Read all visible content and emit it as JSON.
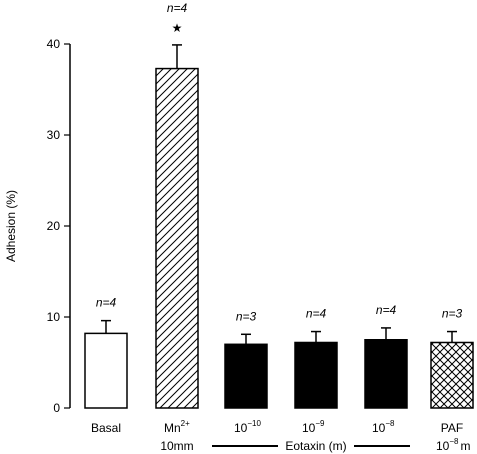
{
  "chart_data": {
    "type": "bar",
    "ylabel": "Adhesion (%)",
    "ylim": [
      0,
      40
    ],
    "yticks": [
      0,
      10,
      20,
      30,
      40
    ],
    "bars": [
      {
        "category": "Basal",
        "value": 8.2,
        "error": 1.4,
        "n_label": "n=4",
        "fill": "white"
      },
      {
        "category": "Mn2+ 10mM",
        "value": 37.3,
        "error": 2.6,
        "n_label": "n=4",
        "marker": "★",
        "fill": "hatch"
      },
      {
        "category": "10-10",
        "value": 7.0,
        "error": 1.1,
        "n_label": "n=3",
        "fill": "black"
      },
      {
        "category": "10-9",
        "value": 7.2,
        "error": 1.2,
        "n_label": "n=4",
        "fill": "black"
      },
      {
        "category": "10-8",
        "value": 7.5,
        "error": 1.3,
        "n_label": "n=4",
        "fill": "black"
      },
      {
        "category": "PAF 10-8 M",
        "value": 7.2,
        "error": 1.2,
        "n_label": "n=3",
        "fill": "crosshatch"
      }
    ],
    "category_text": {
      "basal": "Basal",
      "mn_main": "Mn",
      "mn_sup": "2+",
      "mn_conc": "10mm",
      "e1_base": "10",
      "e1_sup": "−10",
      "e2_base": "10",
      "e2_sup": "−9",
      "e3_base": "10",
      "e3_sup": "−8",
      "paf_name": "PAF",
      "paf_base": "10",
      "paf_sup": "−8",
      "paf_unit": "m"
    },
    "group_label": "Eotaxin (m)"
  }
}
